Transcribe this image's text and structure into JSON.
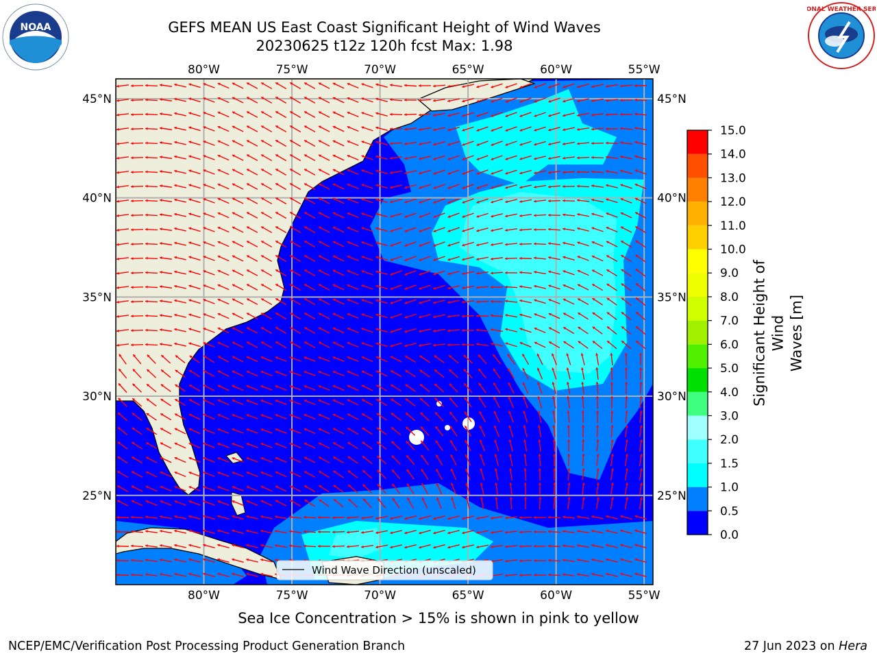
{
  "title": {
    "line1": "GEFS MEAN US East Coast Significant Height of Wind Waves",
    "line2": "20230625 t12z 120h fcst   Max: 1.98"
  },
  "map": {
    "lon_range": [
      -85,
      -54.5
    ],
    "lat_range": [
      20.5,
      46
    ],
    "lon_ticks": [
      "80°W",
      "75°W",
      "70°W",
      "65°W",
      "60°W",
      "55°W"
    ],
    "lat_ticks": [
      "45°N",
      "40°N",
      "35°N",
      "30°N",
      "25°N"
    ],
    "grid": true,
    "land_color": "#eeeedd",
    "legend_label": "Wind Wave Direction (unscaled)",
    "arrow_color": "#ff0000"
  },
  "colorbar": {
    "label_line1": "Significant Height of Wind",
    "label_line2": "Waves [m]",
    "levels": [
      "0.0",
      "0.5",
      "1.0",
      "1.5",
      "2.0",
      "3.0",
      "4.0",
      "5.0",
      "6.0",
      "7.0",
      "8.0",
      "9.0",
      "10.0",
      "11.0",
      "12.0",
      "13.0",
      "14.0",
      "15.0"
    ],
    "colors": [
      "#0000ff",
      "#0080ff",
      "#00ffff",
      "#40ffff",
      "#a0ffff",
      "#40ff80",
      "#00e000",
      "#50f000",
      "#a0f000",
      "#d0ff00",
      "#f0ff00",
      "#ffff00",
      "#ffd000",
      "#ffb000",
      "#ff8000",
      "#ff5000",
      "#ff0000"
    ]
  },
  "caption": "Sea Ice Concentration > 15% is shown in pink to yellow",
  "footer": {
    "left": "NCEP/EMC/Verification Post Processing Product Generation Branch",
    "right_prefix": "27 Jun 2023 on ",
    "right_italic": "Hera"
  },
  "logos": {
    "noaa_text": "NOAA",
    "nws_text": "NATIONAL WEATHER SERVICE"
  }
}
